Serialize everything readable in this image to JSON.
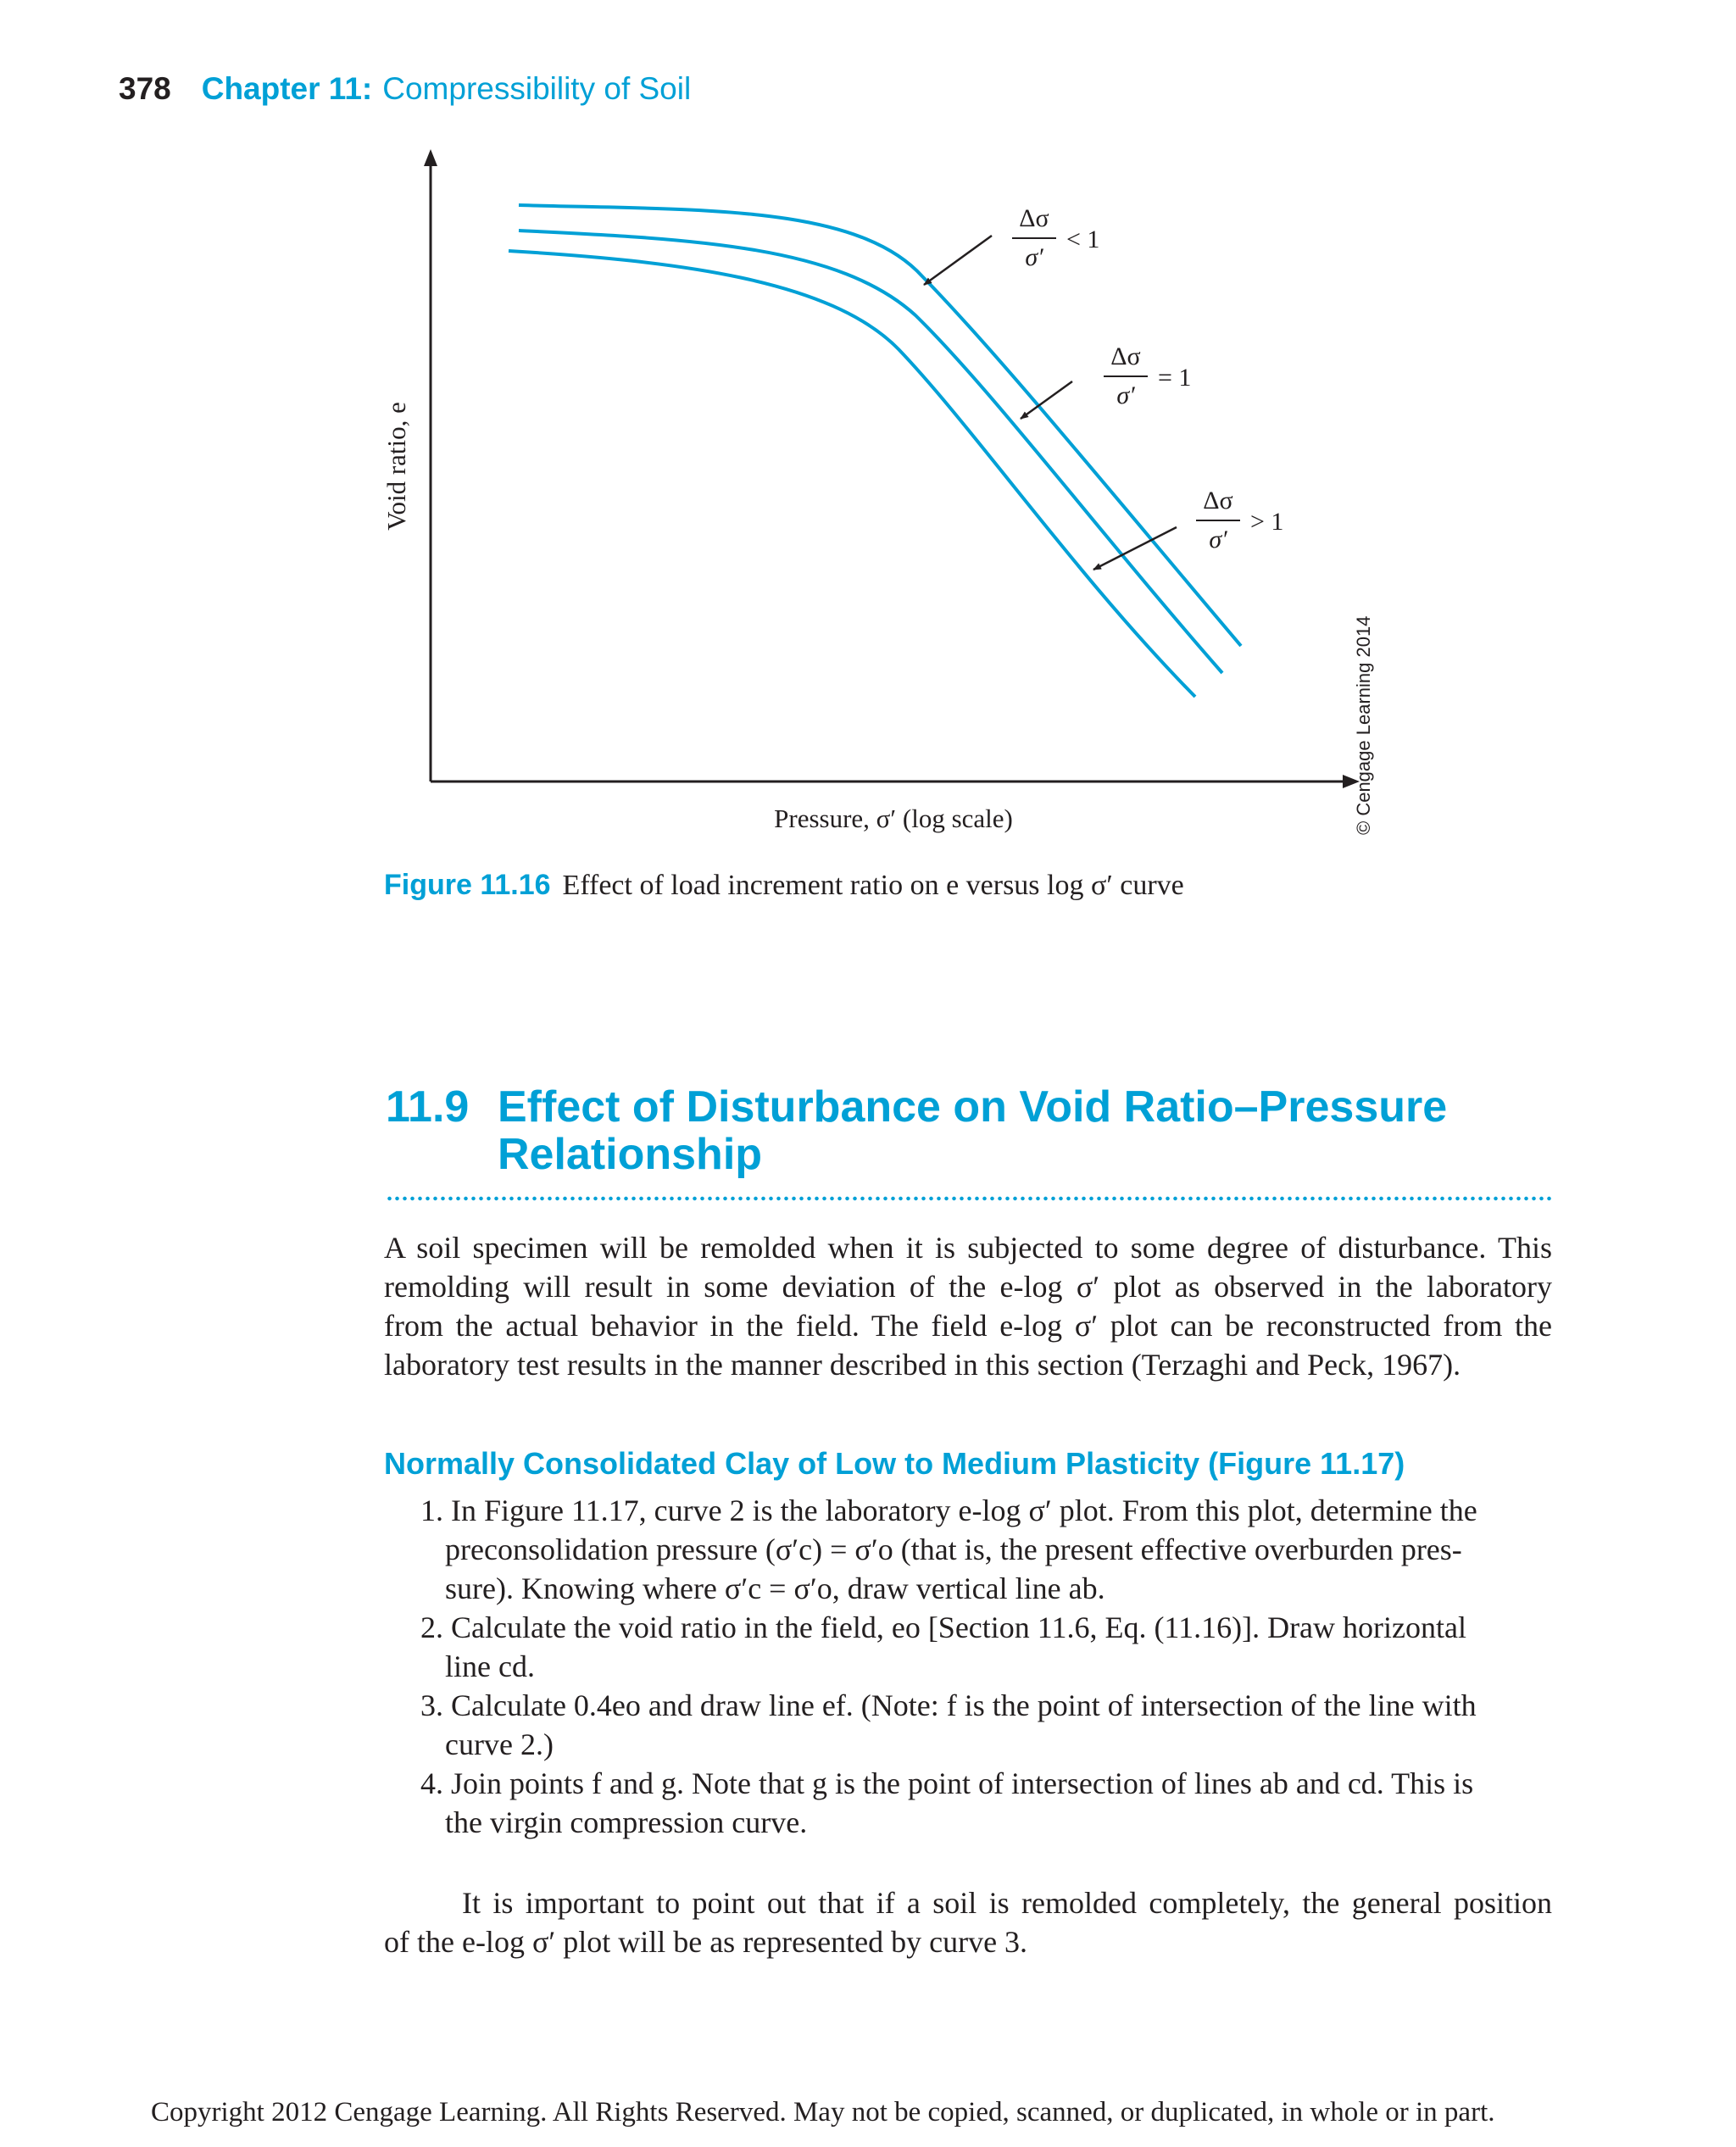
{
  "header": {
    "page_number": "378",
    "chapter_label": "Chapter 11:",
    "chapter_title": "Compressibility of Soil"
  },
  "figure": {
    "y_axis_label": "Void ratio, e",
    "x_axis_label": "Pressure, σ′ (log scale)",
    "curve_labels": [
      {
        "numerator": "Δσ",
        "denominator": "σ′",
        "relation": "< 1"
      },
      {
        "numerator": "Δσ",
        "denominator": "σ′",
        "relation": "= 1"
      },
      {
        "numerator": "Δσ",
        "denominator": "σ′",
        "relation": "> 1"
      }
    ],
    "copyright": "© Cengage Learning 2014",
    "caption_label": "Figure 11.16",
    "caption_text": "Effect of load increment ratio on e versus log σ′ curve",
    "curve_color": "#00a0d6"
  },
  "section": {
    "number": "11.9",
    "title_line1": "Effect of Disturbance on Void Ratio–Pressure",
    "title_line2": "Relationship"
  },
  "paragraph1": [
    "A soil specimen will be remolded when it is subjected to some degree of disturbance. This",
    "remolding will result in some deviation of the e-log σ′ plot as observed in the laboratory",
    "from the actual behavior in the field. The field e-log σ′ plot can be reconstructed from the",
    "laboratory test results in the manner described in this section (Terzaghi and Peck, 1967)."
  ],
  "subheading": "Normally Consolidated Clay of Low to Medium Plasticity (Figure 11.17)",
  "list": [
    {
      "num": "1.",
      "lines": [
        "In Figure 11.17, curve 2 is the laboratory e-log σ′ plot. From this plot, determine the",
        "preconsolidation pressure (σ′c) = σ′o (that is, the present effective overburden pres-",
        "sure). Knowing where σ′c = σ′o, draw vertical line ab."
      ]
    },
    {
      "num": "2.",
      "lines": [
        "Calculate the void ratio in the field, eo [Section 11.6, Eq. (11.16)]. Draw horizontal",
        "line cd."
      ]
    },
    {
      "num": "3.",
      "lines": [
        "Calculate 0.4eo and draw line ef. (Note: f is the point of intersection of the line with",
        "curve 2.)"
      ]
    },
    {
      "num": "4.",
      "lines": [
        "Join points f and g. Note that g is the point of intersection of lines ab and cd. This is",
        "the virgin compression curve."
      ]
    }
  ],
  "paragraph2": [
    "It is important to point out that if a soil is remolded completely, the general position",
    "of the e-log σ′ plot will be as represented by curve 3."
  ],
  "footer": "Copyright 2012 Cengage Learning. All Rights Reserved. May not be copied, scanned, or duplicated, in whole or in part."
}
